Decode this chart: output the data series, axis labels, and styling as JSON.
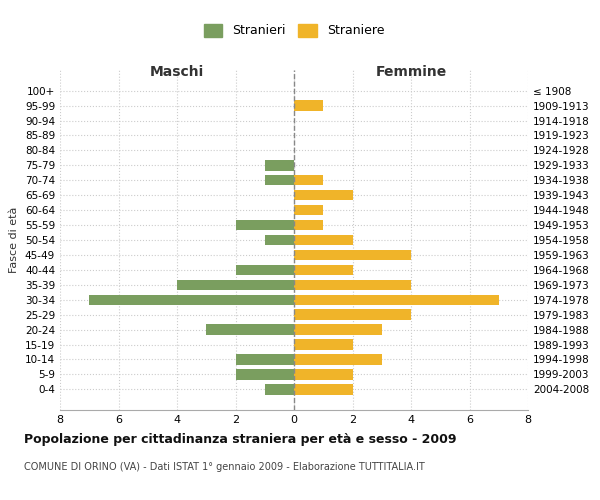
{
  "age_groups": [
    "100+",
    "95-99",
    "90-94",
    "85-89",
    "80-84",
    "75-79",
    "70-74",
    "65-69",
    "60-64",
    "55-59",
    "50-54",
    "45-49",
    "40-44",
    "35-39",
    "30-34",
    "25-29",
    "20-24",
    "15-19",
    "10-14",
    "5-9",
    "0-4"
  ],
  "birth_years": [
    "≤ 1908",
    "1909-1913",
    "1914-1918",
    "1919-1923",
    "1924-1928",
    "1929-1933",
    "1934-1938",
    "1939-1943",
    "1944-1948",
    "1949-1953",
    "1954-1958",
    "1959-1963",
    "1964-1968",
    "1969-1973",
    "1974-1978",
    "1979-1983",
    "1984-1988",
    "1989-1993",
    "1994-1998",
    "1999-2003",
    "2004-2008"
  ],
  "maschi": [
    0,
    0,
    0,
    0,
    0,
    1,
    1,
    0,
    0,
    2,
    1,
    0,
    2,
    4,
    7,
    0,
    3,
    0,
    2,
    2,
    1
  ],
  "femmine": [
    0,
    1,
    0,
    0,
    0,
    0,
    1,
    2,
    1,
    1,
    2,
    4,
    2,
    4,
    7,
    4,
    3,
    2,
    3,
    2,
    2
  ],
  "color_maschi": "#7a9e5f",
  "color_femmine": "#f0b429",
  "title": "Popolazione per cittadinanza straniera per età e sesso - 2009",
  "subtitle": "COMUNE DI ORINO (VA) - Dati ISTAT 1° gennaio 2009 - Elaborazione TUTTITALIA.IT",
  "xlabel_maschi": "Maschi",
  "xlabel_femmine": "Femmine",
  "ylabel": "Fasce di età",
  "legend_stranieri": "Stranieri",
  "legend_straniere": "Straniere",
  "xlim": 8,
  "background_color": "#ffffff",
  "grid_color": "#cccccc"
}
